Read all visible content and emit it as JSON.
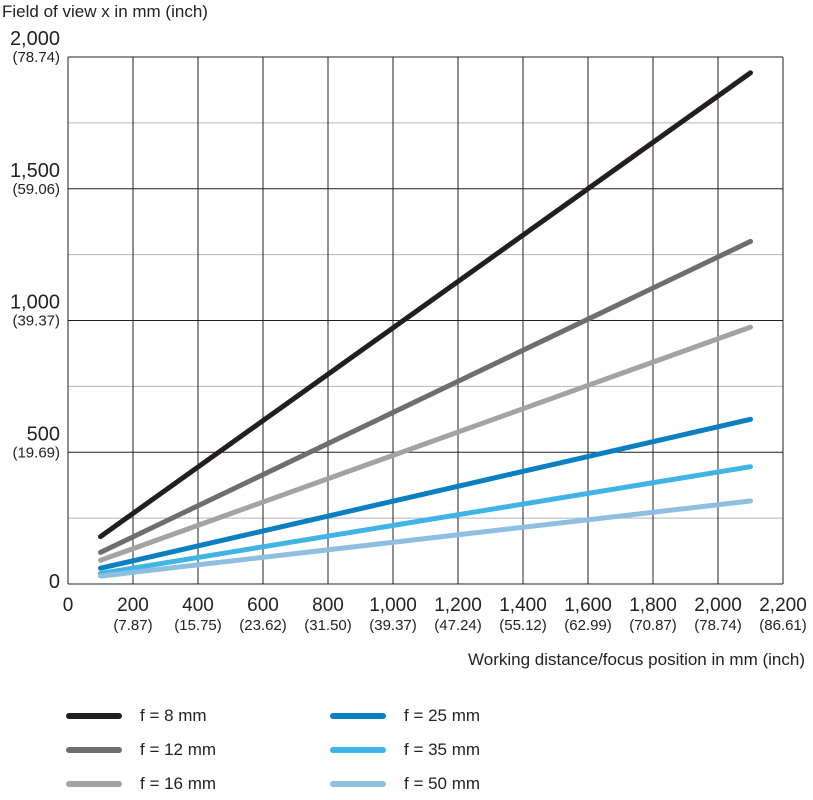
{
  "chart_data": {
    "type": "line",
    "ylabel": "Field of view x in mm (inch)",
    "xlabel": "Working distance/focus position in mm (inch)",
    "xlim": [
      0,
      2200
    ],
    "ylim": [
      0,
      2000
    ],
    "x_ticks": [
      {
        "value": 0,
        "label": "0",
        "sublabel": ""
      },
      {
        "value": 200,
        "label": "200",
        "sublabel": "(7.87)"
      },
      {
        "value": 400,
        "label": "400",
        "sublabel": "(15.75)"
      },
      {
        "value": 600,
        "label": "600",
        "sublabel": "(23.62)"
      },
      {
        "value": 800,
        "label": "800",
        "sublabel": "(31.50)"
      },
      {
        "value": 1000,
        "label": "1,000",
        "sublabel": "(39.37)"
      },
      {
        "value": 1200,
        "label": "1,200",
        "sublabel": "(47.24)"
      },
      {
        "value": 1400,
        "label": "1,400",
        "sublabel": "(55.12)"
      },
      {
        "value": 1600,
        "label": "1,600",
        "sublabel": "(62.99)"
      },
      {
        "value": 1800,
        "label": "1,800",
        "sublabel": "(70.87)"
      },
      {
        "value": 2000,
        "label": "2,000",
        "sublabel": "(78.74)"
      },
      {
        "value": 2200,
        "label": "2,200",
        "sublabel": "(86.61)"
      }
    ],
    "y_ticks": [
      {
        "value": 0,
        "label": "0",
        "sublabel": ""
      },
      {
        "value": 500,
        "label": "500",
        "sublabel": "(19.69)"
      },
      {
        "value": 1000,
        "label": "1,000",
        "sublabel": "(39.37)"
      },
      {
        "value": 1500,
        "label": "1,500",
        "sublabel": "(59.06)"
      },
      {
        "value": 2000,
        "label": "2,000",
        "sublabel": "(78.74)"
      }
    ],
    "y_minor_grid": [
      250,
      750,
      1250,
      1750
    ],
    "grid": true,
    "legend_position": "bottom",
    "series": [
      {
        "name": "f = 8 mm",
        "color": "#231f20",
        "points": [
          [
            100,
            180
          ],
          [
            2100,
            1940
          ]
        ]
      },
      {
        "name": "f = 12 mm",
        "color": "#6d6e70",
        "points": [
          [
            100,
            120
          ],
          [
            2100,
            1300
          ]
        ]
      },
      {
        "name": "f = 16 mm",
        "color": "#a2a3a5",
        "points": [
          [
            100,
            90
          ],
          [
            2100,
            975
          ]
        ]
      },
      {
        "name": "f = 25 mm",
        "color": "#0a7fc1",
        "points": [
          [
            100,
            60
          ],
          [
            2100,
            625
          ]
        ]
      },
      {
        "name": "f = 35 mm",
        "color": "#40b4e5",
        "points": [
          [
            100,
            40
          ],
          [
            2100,
            445
          ]
        ]
      },
      {
        "name": "f = 50 mm",
        "color": "#8fbfe0",
        "points": [
          [
            100,
            30
          ],
          [
            2100,
            315
          ]
        ]
      }
    ]
  }
}
